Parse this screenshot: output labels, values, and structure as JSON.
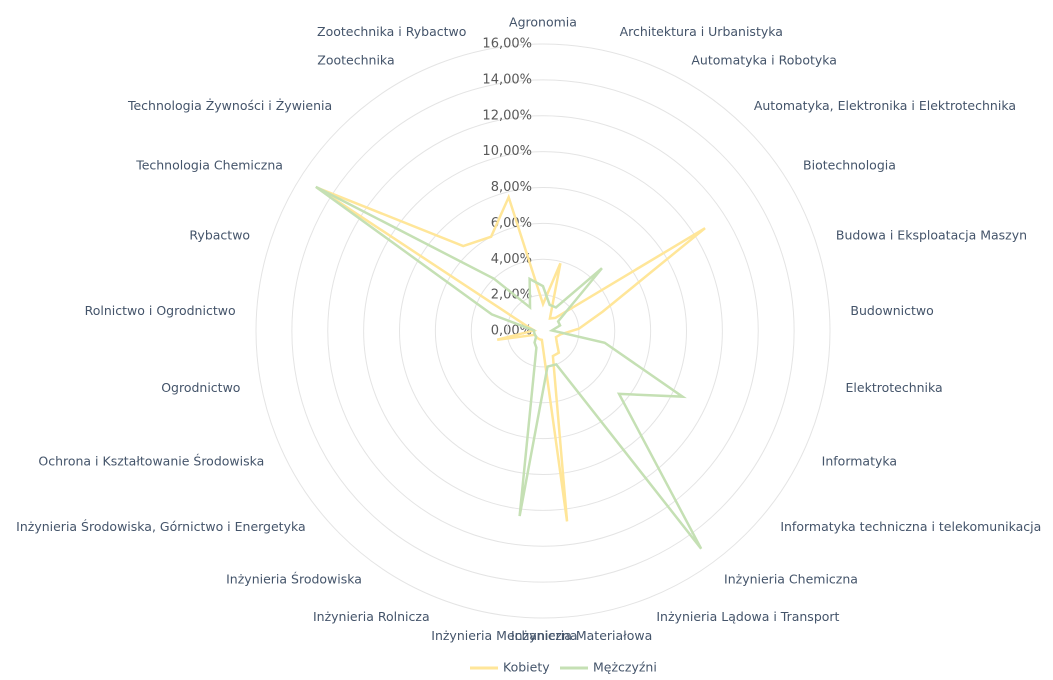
{
  "chart_data": {
    "type": "radar",
    "categories": [
      "Agronomia",
      "Architektura i Urbanistyka",
      "Automatyka i Robotyka",
      "Automatyka, Elektronika i Elektrotechnika",
      "Biotechnologia",
      "Budowa i Eksploatacja Maszyn",
      "Budownictwo",
      "Elektrotechnika",
      "Informatyka",
      "Informatyka techniczna i telekomunikacja",
      "Inżynieria Chemiczna",
      "Inżynieria Lądowa i Transport",
      "Inżynieria Materiałowa",
      "Inżynieria Mechaniczna",
      "Inżynieria Rolnicza",
      "Inżynieria Środowiska",
      "Inżynieria Środowiska, Górnictwo i Energetyka",
      "Ochrona i Kształtowanie Środowiska",
      "Ogrodnictwo",
      "Rolnictwo i Ogrodnictwo",
      "Rybactwo",
      "Technologia Chemiczna",
      "Technologia Żywności i Żywienia",
      "Zootechnika",
      "Zootechnika i Rybactwo"
    ],
    "series": [
      {
        "name": "Kobiety",
        "color": "#ffe699",
        "values": [
          1.5,
          3.9,
          0.8,
          1.0,
          10.7,
          3.5,
          2.0,
          1.0,
          0.8,
          1.0,
          1.5,
          1.5,
          10.7,
          0.5,
          0.5,
          0.5,
          0.5,
          0.5,
          2.6,
          0.5,
          1.0,
          14.9,
          6.5,
          6.0,
          7.7
        ]
      },
      {
        "name": "Mężczyźni",
        "color": "#c5e0b4",
        "values": [
          2.5,
          1.5,
          1.5,
          4.8,
          1.0,
          1.0,
          0.5,
          3.5,
          8.6,
          5.5,
          15.0,
          2.0,
          2.0,
          10.4,
          1.0,
          0.8,
          0.5,
          0.5,
          0.5,
          0.5,
          3.0,
          15.0,
          4.0,
          1.5,
          3.0
        ]
      }
    ],
    "ylim": [
      0,
      16
    ],
    "yticks": [
      {
        "value": 0,
        "label": "0,00%"
      },
      {
        "value": 2,
        "label": "2,00%"
      },
      {
        "value": 4,
        "label": "4,00%"
      },
      {
        "value": 6,
        "label": "6,00%"
      },
      {
        "value": 8,
        "label": "8,00%"
      },
      {
        "value": 10,
        "label": "10,00%"
      },
      {
        "value": 12,
        "label": "12,00%"
      },
      {
        "value": 14,
        "label": "14,00%"
      },
      {
        "value": 16,
        "label": "16,00%"
      }
    ],
    "grid": true,
    "legend": "bottom"
  }
}
